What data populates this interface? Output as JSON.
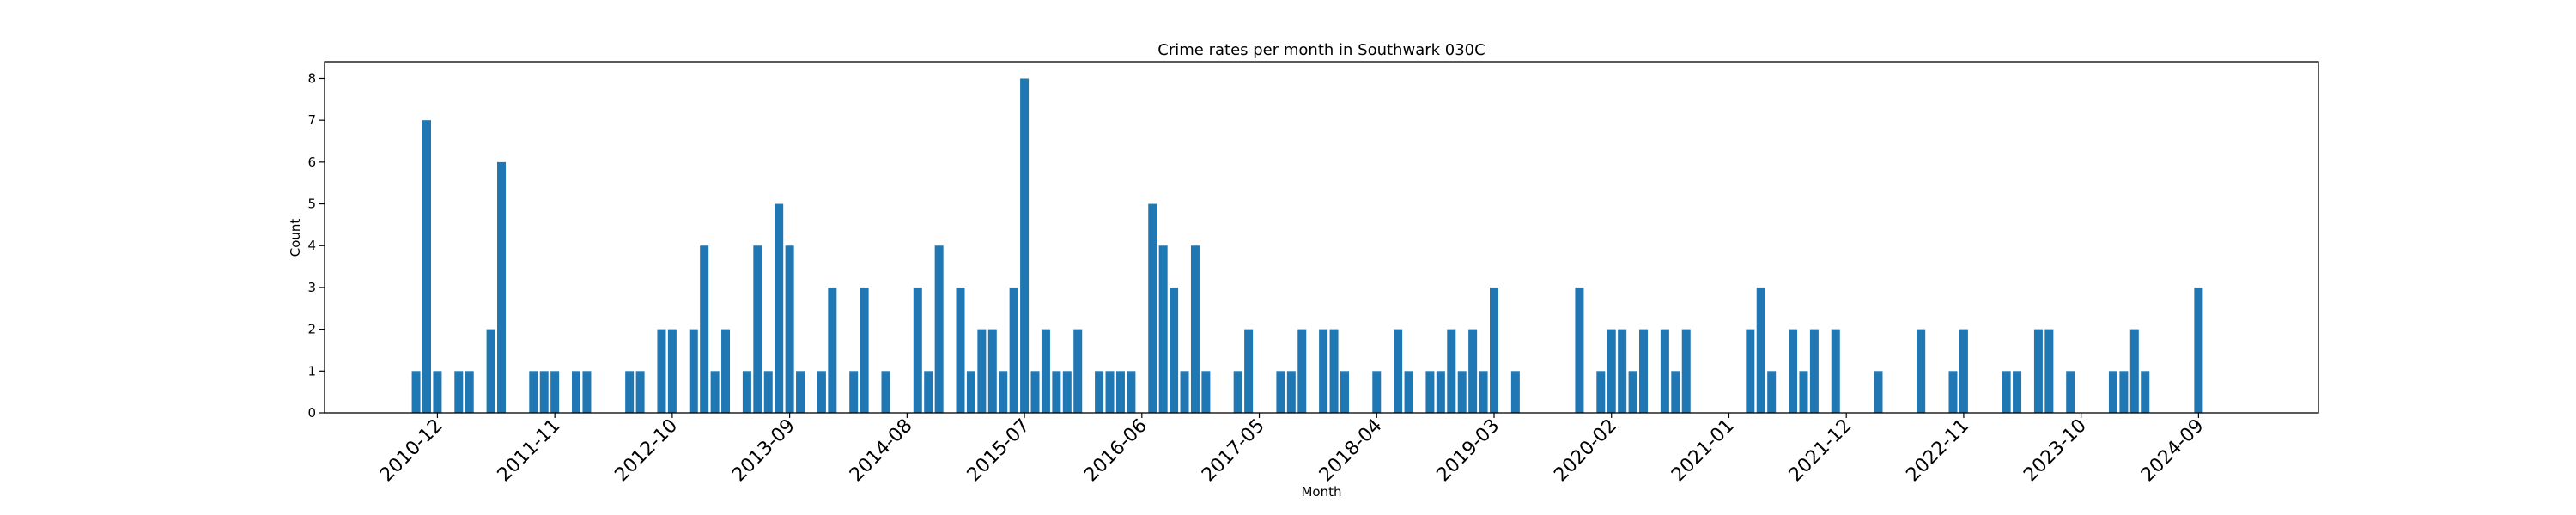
{
  "chart_data": {
    "type": "bar",
    "title": "Crime rates per month in Southwark 030C",
    "xlabel": "Month",
    "ylabel": "Count",
    "ylim": [
      0,
      8.4
    ],
    "yticks": [
      0,
      1,
      2,
      3,
      4,
      5,
      6,
      7,
      8
    ],
    "grid": false,
    "bar_color": "#1f77b4",
    "categories": [
      "2010-10",
      "2010-11",
      "2010-12",
      "2011-02",
      "2011-03",
      "2011-05",
      "2011-06",
      "2011-09",
      "2011-10",
      "2011-11",
      "2012-01",
      "2012-02",
      "2012-06",
      "2012-07",
      "2012-09",
      "2012-10",
      "2012-12",
      "2013-01",
      "2013-02",
      "2013-03",
      "2013-05",
      "2013-06",
      "2013-07",
      "2013-08",
      "2013-09",
      "2013-10",
      "2013-12",
      "2014-01",
      "2014-03",
      "2014-04",
      "2014-06",
      "2014-09",
      "2014-10",
      "2014-11",
      "2015-01",
      "2015-02",
      "2015-03",
      "2015-04",
      "2015-05",
      "2015-06",
      "2015-07",
      "2015-08",
      "2015-09",
      "2015-10",
      "2015-11",
      "2015-12",
      "2016-02",
      "2016-03",
      "2016-04",
      "2016-05",
      "2016-07",
      "2016-08",
      "2016-09",
      "2016-10",
      "2016-11",
      "2016-12",
      "2017-03",
      "2017-04",
      "2017-07",
      "2017-08",
      "2017-09",
      "2017-11",
      "2017-12",
      "2018-01",
      "2018-04",
      "2018-06",
      "2018-07",
      "2018-09",
      "2018-10",
      "2018-11",
      "2018-12",
      "2019-01",
      "2019-02",
      "2019-03",
      "2019-05",
      "2019-11",
      "2020-01",
      "2020-02",
      "2020-03",
      "2020-04",
      "2020-05",
      "2020-07",
      "2020-08",
      "2020-09",
      "2021-03",
      "2021-04",
      "2021-05",
      "2021-07",
      "2021-08",
      "2021-09",
      "2021-11",
      "2022-03",
      "2022-07",
      "2022-10",
      "2022-11",
      "2023-03",
      "2023-04",
      "2023-06",
      "2023-07",
      "2023-09",
      "2024-01",
      "2024-02",
      "2024-03",
      "2024-04",
      "2024-09"
    ],
    "values": [
      1,
      7,
      1,
      1,
      1,
      2,
      6,
      1,
      1,
      1,
      1,
      1,
      1,
      1,
      2,
      2,
      2,
      4,
      1,
      2,
      1,
      4,
      1,
      5,
      4,
      1,
      1,
      3,
      1,
      3,
      1,
      3,
      1,
      4,
      3,
      1,
      2,
      2,
      1,
      3,
      8,
      1,
      2,
      1,
      1,
      2,
      1,
      1,
      1,
      1,
      5,
      4,
      3,
      1,
      4,
      1,
      1,
      2,
      1,
      1,
      2,
      2,
      2,
      1,
      1,
      2,
      1,
      1,
      1,
      2,
      1,
      2,
      1,
      3,
      1,
      3,
      1,
      2,
      2,
      1,
      2,
      2,
      1,
      2,
      2,
      3,
      1,
      2,
      1,
      2,
      2,
      1,
      2,
      1,
      2,
      1,
      1,
      2,
      2,
      1,
      1,
      1,
      2,
      1,
      3
    ],
    "xtick_labels": [
      "2010-12",
      "2011-11",
      "2012-10",
      "2013-09",
      "2014-08",
      "2015-07",
      "2016-06",
      "2017-05",
      "2018-04",
      "2019-03",
      "2020-02",
      "2021-01",
      "2021-12",
      "2022-11",
      "2023-10",
      "2024-09"
    ]
  }
}
